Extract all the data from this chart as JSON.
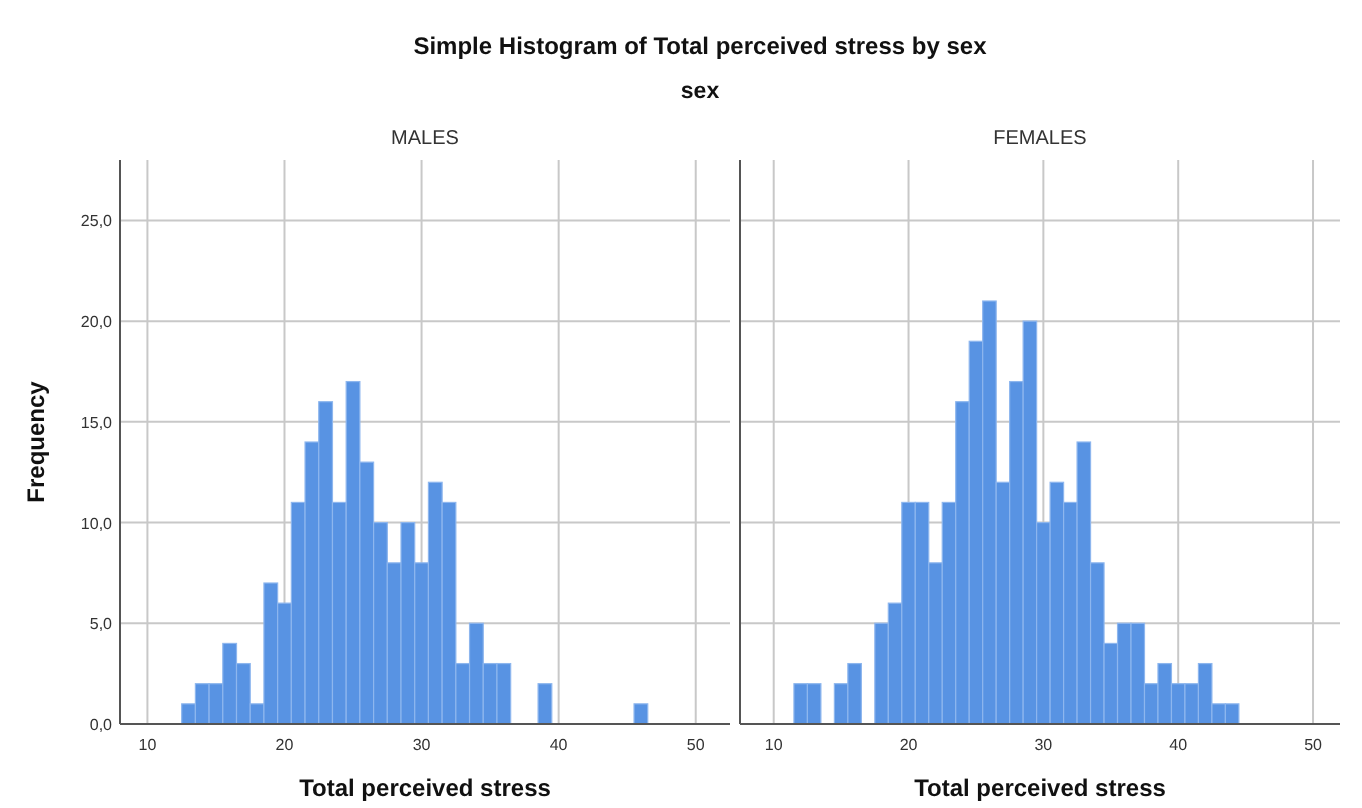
{
  "chart_data": [
    {
      "type": "histogram",
      "title": "MALES",
      "annotations": [
        "Simple Histogram of Total perceived stress by sex",
        "sex"
      ],
      "xlabel": "Total perceived stress",
      "ylabel": "Frequency",
      "color": "#5893e3",
      "grid": true,
      "bins": [
        12.5,
        13.5,
        14.5,
        15.5,
        16.5,
        17.5,
        18.5,
        19.5,
        20.5,
        21.5,
        22.5,
        23.5,
        24.5,
        25.5,
        26.5,
        27.5,
        28.5,
        29.5,
        30.5,
        31.5,
        32.5,
        33.5,
        34.5,
        35.5,
        36.5,
        37.5,
        38.5,
        39.5,
        40.5,
        41.5,
        42.5,
        43.5,
        44.5,
        45.5,
        46.5
      ],
      "values": [
        1,
        2,
        2,
        4,
        3,
        1,
        7,
        6,
        11,
        14,
        16,
        11,
        17,
        13,
        10,
        8,
        10,
        8,
        12,
        11,
        3,
        5,
        3,
        3,
        0,
        0,
        2,
        0,
        0,
        0,
        0,
        0,
        0,
        1
      ],
      "xlim": [
        8,
        52.5
      ],
      "xticks": [
        10,
        20,
        30,
        40,
        50
      ],
      "ylim": [
        0,
        28
      ],
      "yticks": [
        {
          "value": 0,
          "label": "0,0"
        },
        {
          "value": 5,
          "label": "5,0"
        },
        {
          "value": 10,
          "label": "10,0"
        },
        {
          "value": 15,
          "label": "15,0"
        },
        {
          "value": 20,
          "label": "20,0"
        },
        {
          "value": 25,
          "label": "25,0"
        }
      ]
    },
    {
      "type": "histogram",
      "title": "FEMALES",
      "xlabel": "Total perceived stress",
      "color": "#5893e3",
      "grid": true,
      "tick_labels": "x",
      "bins": [
        11.5,
        12.5,
        13.5,
        14.5,
        15.5,
        16.5,
        17.5,
        18.5,
        19.5,
        20.5,
        21.5,
        22.5,
        23.5,
        24.5,
        25.5,
        26.5,
        27.5,
        28.5,
        29.5,
        30.5,
        31.5,
        32.5,
        33.5,
        34.5,
        35.5,
        36.5,
        37.5,
        38.5,
        39.5,
        40.5,
        41.5,
        42.5,
        43.5,
        44.5
      ],
      "values": [
        2,
        2,
        0,
        2,
        3,
        0,
        5,
        6,
        11,
        11,
        8,
        11,
        16,
        19,
        21,
        12,
        17,
        20,
        10,
        12,
        11,
        14,
        8,
        4,
        5,
        5,
        2,
        3,
        2,
        2,
        3,
        1,
        1
      ],
      "xlim": [
        7.5,
        52
      ],
      "xticks": [
        10,
        20,
        30,
        40,
        50
      ],
      "ylim": [
        0,
        28
      ],
      "yticks": [
        {
          "value": 0,
          "label": null
        },
        {
          "value": 5,
          "label": null
        },
        {
          "value": 10,
          "label": null
        },
        {
          "value": 15,
          "label": null
        },
        {
          "value": 20,
          "label": null
        },
        {
          "value": 25,
          "label": null
        }
      ]
    }
  ]
}
